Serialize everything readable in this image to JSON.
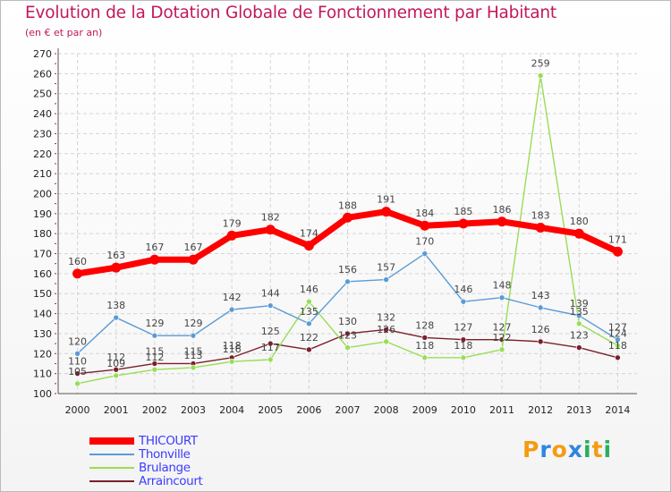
{
  "header": {
    "title": "Evolution de la Dotation Globale de Fonctionnement par Habitant",
    "subtitle": "(en € et par an)"
  },
  "logo": {
    "letters": [
      "P",
      "r",
      "o",
      "x",
      "i",
      "t",
      "i"
    ],
    "colors": [
      "#f39c12",
      "#2e86de",
      "#f39c12",
      "#2e86de",
      "#27ae60",
      "#f39c12",
      "#27ae60"
    ]
  },
  "chart_data": {
    "type": "line",
    "title": "Evolution de la Dotation Globale de Fonctionnement par Habitant",
    "subtitle": "(en € et par an)",
    "x": [
      "2000",
      "2001",
      "2002",
      "2003",
      "2004",
      "2005",
      "2006",
      "2007",
      "2008",
      "2009",
      "2010",
      "2011",
      "2012",
      "2013",
      "2014"
    ],
    "ylim": [
      100,
      270
    ],
    "yticks": [
      100,
      110,
      120,
      130,
      140,
      150,
      160,
      170,
      180,
      190,
      200,
      210,
      220,
      230,
      240,
      250,
      260,
      270
    ],
    "grid": true,
    "legend_position": "bottom-left",
    "series": [
      {
        "name": "THICOURT",
        "color": "#ff0000",
        "values": [
          160,
          163,
          167,
          167,
          179,
          182,
          174,
          188,
          191,
          184,
          185,
          186,
          183,
          180,
          171
        ],
        "labels": [
          "160",
          "163",
          "167",
          "167",
          "179",
          "182",
          "174",
          "188",
          "191",
          "184",
          "185",
          "186",
          "183",
          "180",
          "171"
        ]
      },
      {
        "name": "Thonville",
        "color": "#5a9bd5",
        "values": [
          120,
          138,
          129,
          129,
          142,
          144,
          135,
          156,
          157,
          170,
          146,
          148,
          143,
          139,
          127
        ],
        "labels": [
          "120",
          "138",
          "129",
          "129",
          "142",
          "144",
          "135",
          "156",
          "157",
          "170",
          "146",
          "148",
          "143",
          "139",
          "127"
        ]
      },
      {
        "name": "Brulange",
        "color": "#99dd55",
        "values": [
          105,
          109,
          112,
          113,
          116,
          117,
          146,
          123,
          126,
          118,
          118,
          122,
          259,
          135,
          124
        ],
        "labels": [
          "105",
          "109",
          "112",
          "113",
          "116",
          "117",
          "146",
          "123",
          "126",
          "118",
          "118",
          "122",
          "259",
          "135",
          "124"
        ]
      },
      {
        "name": "Arraincourt",
        "color": "#7a1f2b",
        "values": [
          110,
          112,
          115,
          115,
          118,
          125,
          122,
          130,
          132,
          128,
          127,
          127,
          126,
          123,
          118
        ],
        "labels": [
          "110",
          "112",
          "115",
          "115",
          "118",
          "125",
          "122",
          "130",
          "132",
          "128",
          "127",
          "127",
          "126",
          "123",
          "118"
        ]
      }
    ]
  }
}
